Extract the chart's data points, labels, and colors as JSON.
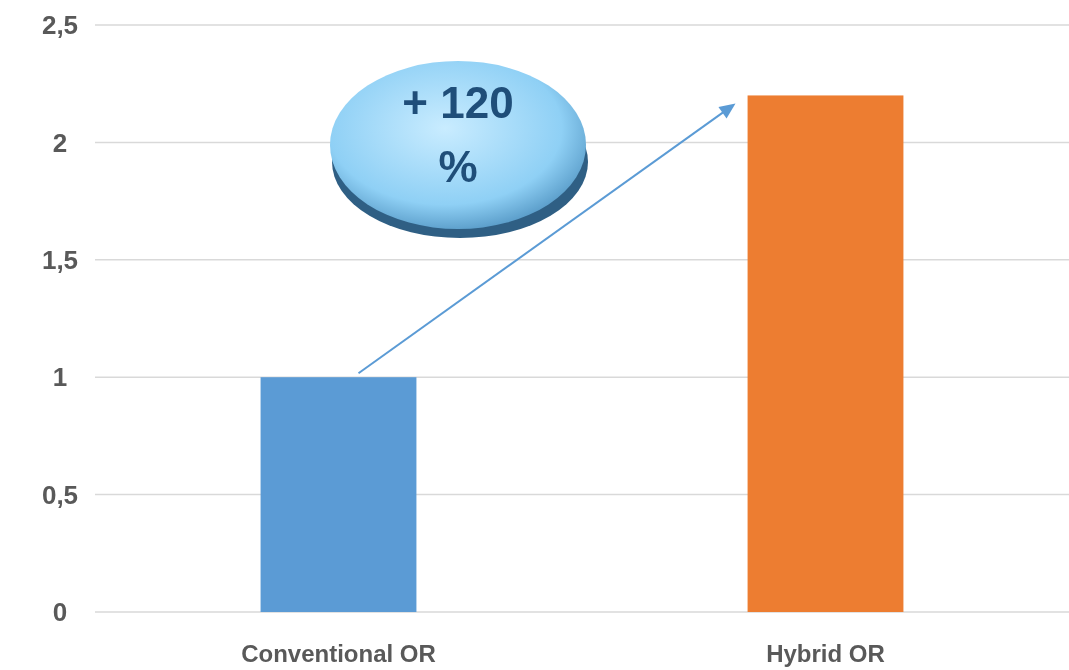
{
  "chart_data": {
    "type": "bar",
    "categories": [
      "Conventional OR",
      "Hybrid OR"
    ],
    "values": [
      1,
      2.2
    ],
    "colors": [
      "#5b9bd5",
      "#ed7d31"
    ],
    "ylim": [
      0,
      2.5
    ],
    "yticks": [
      0,
      {
        "value": 0.5,
        "label": "0,5"
      },
      1,
      {
        "value": 1.5,
        "label": "1,5"
      },
      2,
      {
        "value": 2.5,
        "label": "2,5"
      }
    ],
    "grid": "y",
    "annotations": [
      "+ 120 %"
    ]
  }
}
